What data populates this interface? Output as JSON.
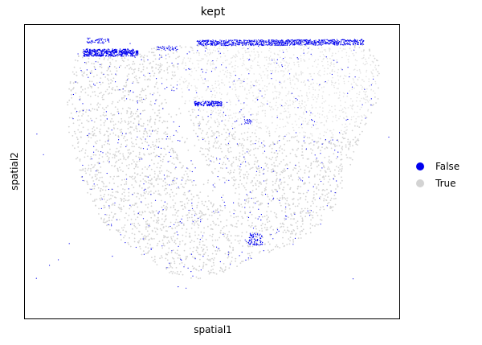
{
  "chart_data": {
    "type": "scatter",
    "title": "kept",
    "xlabel": "spatial1",
    "ylabel": "spatial2",
    "grid": false,
    "ticks_shown": false,
    "legend_position": "right",
    "series": [
      {
        "name": "False",
        "color": "#0000ee"
      },
      {
        "name": "True",
        "color": "#d3d3d3"
      }
    ]
  }
}
